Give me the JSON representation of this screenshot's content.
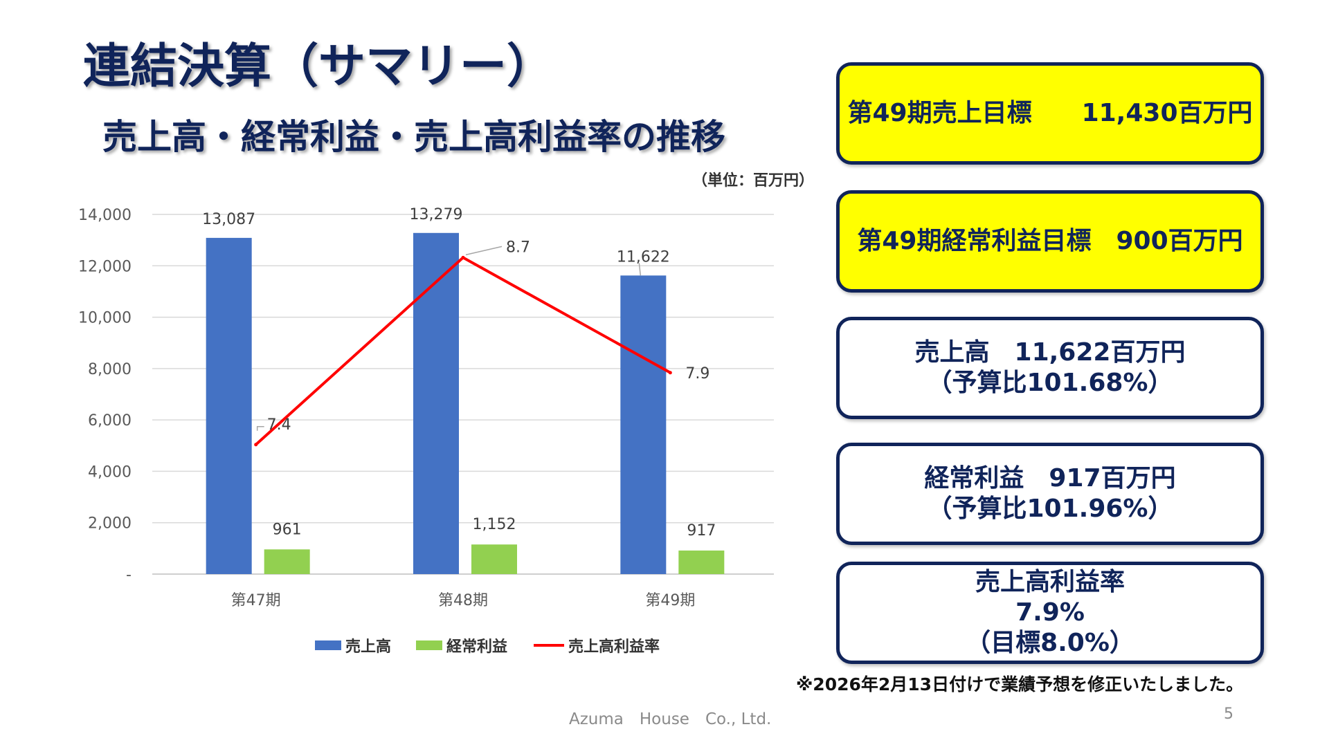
{
  "slide": {
    "title": "連結決算（サマリー）",
    "subtitle": "売上高・経常利益・売上高利益率の推移",
    "unit": "（単位：百万円）",
    "note": "※2026年2月13日付けで業績予想を修正いたしました。",
    "footer": "Azuma　House　Co., Ltd.",
    "page_number": "5"
  },
  "boxes": [
    {
      "style": "yellow",
      "lines": [
        "第49期売上目標　　11,430百万円"
      ]
    },
    {
      "style": "yellow",
      "lines": [
        "第49期経常利益目標　900百万円"
      ]
    },
    {
      "style": "white",
      "lines": [
        "売上高　11,622百万円",
        "（予算比101.68%）"
      ]
    },
    {
      "style": "white",
      "lines": [
        "経常利益　917百万円",
        "（予算比101.96%）"
      ]
    },
    {
      "style": "white",
      "lines": [
        "売上高利益率",
        "7.9%",
        "（目標8.0%）"
      ]
    }
  ],
  "chart_data": {
    "type": "bar",
    "categories": [
      "第47期",
      "第48期",
      "第49期"
    ],
    "series": [
      {
        "name": "売上高",
        "type": "bar",
        "axis": "left",
        "color": "#4472c4",
        "values": [
          13087,
          13279,
          11622
        ],
        "labels": [
          "13,087",
          "13,279",
          "11,622"
        ]
      },
      {
        "name": "経常利益",
        "type": "bar",
        "axis": "left",
        "color": "#92d050",
        "values": [
          961,
          1152,
          917
        ],
        "labels": [
          "961",
          "1,152",
          "917"
        ]
      },
      {
        "name": "売上高利益率",
        "type": "line",
        "axis": "right",
        "color": "#ff0000",
        "values": [
          7.4,
          8.7,
          7.9
        ],
        "labels": [
          "7.4",
          "8.7",
          "7.9"
        ]
      }
    ],
    "y_left": {
      "min": 0,
      "max": 14000,
      "ticks": [
        "-",
        "2,000",
        "4,000",
        "6,000",
        "8,000",
        "10,000",
        "12,000",
        "14,000"
      ]
    },
    "y_right": {
      "min": 6.5,
      "max": 9,
      "ticks": [
        "6.5",
        "7",
        "7.5",
        "8",
        "8.5",
        "9"
      ]
    },
    "grid": true,
    "legend": "bottom"
  }
}
